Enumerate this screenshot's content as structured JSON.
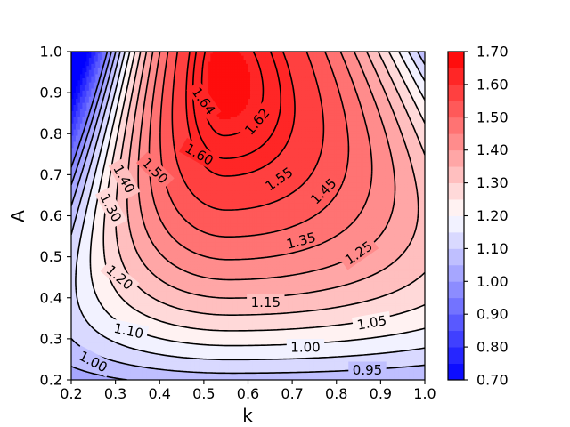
{
  "chart_data": {
    "type": "contour",
    "xlabel": "k",
    "ylabel": "A",
    "xlim": [
      0.2,
      1.0
    ],
    "ylim": [
      0.2,
      1.0
    ],
    "x_ticks": [
      "0.2",
      "0.3",
      "0.4",
      "0.5",
      "0.6",
      "0.7",
      "0.8",
      "0.9",
      "1.0"
    ],
    "y_ticks": [
      "0.2",
      "0.3",
      "0.4",
      "0.5",
      "0.6",
      "0.7",
      "0.8",
      "0.9",
      "1.0"
    ],
    "colormap": "bwr",
    "color_range": [
      0.7,
      1.7
    ],
    "peak": {
      "k": 0.54,
      "A": 0.93,
      "value": 1.66
    },
    "contour_levels": [
      0.95,
      1.0,
      1.05,
      1.1,
      1.15,
      1.2,
      1.25,
      1.3,
      1.35,
      1.4,
      1.45,
      1.5,
      1.55,
      1.6,
      1.62,
      1.64
    ],
    "contour_labels": [
      {
        "text": "1.64",
        "k": 0.5,
        "A": 0.88,
        "angle": 55
      },
      {
        "text": "1.62",
        "k": 0.62,
        "A": 0.83,
        "angle": -50
      },
      {
        "text": "1.60",
        "k": 0.49,
        "A": 0.75,
        "angle": 30
      },
      {
        "text": "1.55",
        "k": 0.67,
        "A": 0.69,
        "angle": -35
      },
      {
        "text": "1.50",
        "k": 0.39,
        "A": 0.71,
        "angle": 45
      },
      {
        "text": "1.45",
        "k": 0.77,
        "A": 0.66,
        "angle": -45
      },
      {
        "text": "1.40",
        "k": 0.32,
        "A": 0.69,
        "angle": 62
      },
      {
        "text": "1.30",
        "k": 0.29,
        "A": 0.62,
        "angle": 62
      },
      {
        "text": "1.35",
        "k": 0.72,
        "A": 0.54,
        "angle": -15
      },
      {
        "text": "1.25",
        "k": 0.85,
        "A": 0.51,
        "angle": -35
      },
      {
        "text": "1.20",
        "k": 0.31,
        "A": 0.45,
        "angle": 40
      },
      {
        "text": "1.15",
        "k": 0.64,
        "A": 0.39,
        "angle": 0
      },
      {
        "text": "1.10",
        "k": 0.33,
        "A": 0.32,
        "angle": 12
      },
      {
        "text": "1.05",
        "k": 0.88,
        "A": 0.34,
        "angle": -10
      },
      {
        "text": "1.00",
        "k": 0.25,
        "A": 0.245,
        "angle": 28
      },
      {
        "text": "1.00",
        "k": 0.73,
        "A": 0.28,
        "angle": 0
      },
      {
        "text": "0.95",
        "k": 0.87,
        "A": 0.225,
        "angle": 0
      }
    ],
    "colorbar": {
      "ticks": [
        "0.70",
        "0.80",
        "0.90",
        "1.00",
        "1.10",
        "1.20",
        "1.30",
        "1.40",
        "1.50",
        "1.60",
        "1.70"
      ],
      "range": [
        0.7,
        1.7
      ],
      "level_step": 0.05
    }
  }
}
